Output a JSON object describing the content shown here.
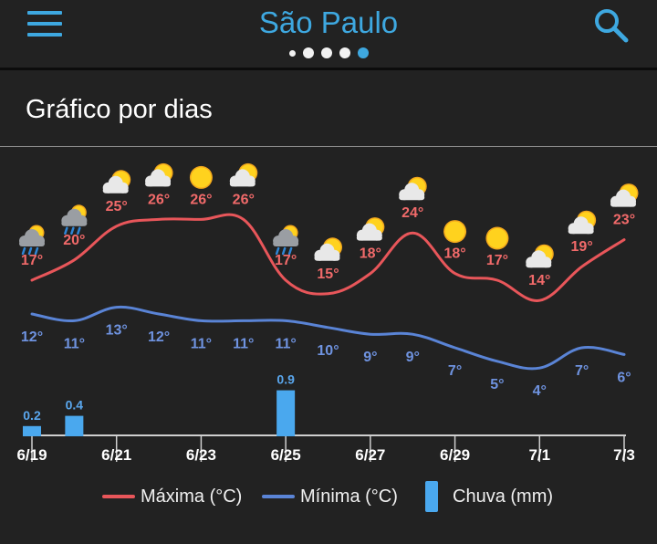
{
  "header": {
    "title": "São Paulo",
    "page_count": 5,
    "active_page": 4
  },
  "section": {
    "title": "Gráfico por dias"
  },
  "icons": {
    "menu": "menu-icon",
    "search": "search-icon"
  },
  "colors": {
    "accent": "#3ea8e0",
    "max": "#e8565a",
    "min": "#5a84d6",
    "rain": "#4aa8ee"
  },
  "chart_data": {
    "type": "line",
    "x": [
      "6/19",
      "6/20",
      "6/21",
      "6/22",
      "6/23",
      "6/24",
      "6/25",
      "6/26",
      "6/27",
      "6/28",
      "6/29",
      "6/30",
      "7/1",
      "7/2",
      "7/3"
    ],
    "x_tick_labels": [
      "6/19",
      "6/21",
      "6/23",
      "6/25",
      "6/27",
      "6/29",
      "7/1",
      "7/3"
    ],
    "series": [
      {
        "name": "Máxima (°C)",
        "values": [
          17,
          20,
          25,
          26,
          26,
          26,
          17,
          15,
          18,
          24,
          18,
          17,
          14,
          19,
          23
        ]
      },
      {
        "name": "Mínima (°C)",
        "values": [
          12,
          11,
          13,
          12,
          11,
          11,
          11,
          10,
          9,
          9,
          7,
          5,
          4,
          7,
          6
        ]
      },
      {
        "name": "Chuva (mm)",
        "type": "bar",
        "values": [
          0.2,
          0.4,
          0,
          0,
          0,
          0,
          0.9,
          0,
          0,
          0,
          0,
          0,
          0,
          0,
          0
        ]
      }
    ],
    "rain_labels": [
      "0.2",
      "0.4",
      "",
      "",
      "",
      "",
      "0.9",
      "",
      "",
      "",
      "",
      "",
      "",
      "",
      ""
    ],
    "weather_icons": [
      "rain-cloud-icon",
      "rain-cloud-icon",
      "partly-cloudy-icon",
      "partly-cloudy-icon",
      "sun-icon",
      "partly-cloudy-icon",
      "rain-cloud-icon",
      "partly-cloudy-icon",
      "partly-cloudy-icon",
      "partly-cloudy-icon",
      "sun-icon",
      "sun-icon",
      "partly-cloudy-icon",
      "partly-cloudy-icon",
      "partly-cloudy-icon"
    ],
    "legend_position": "bottom"
  }
}
